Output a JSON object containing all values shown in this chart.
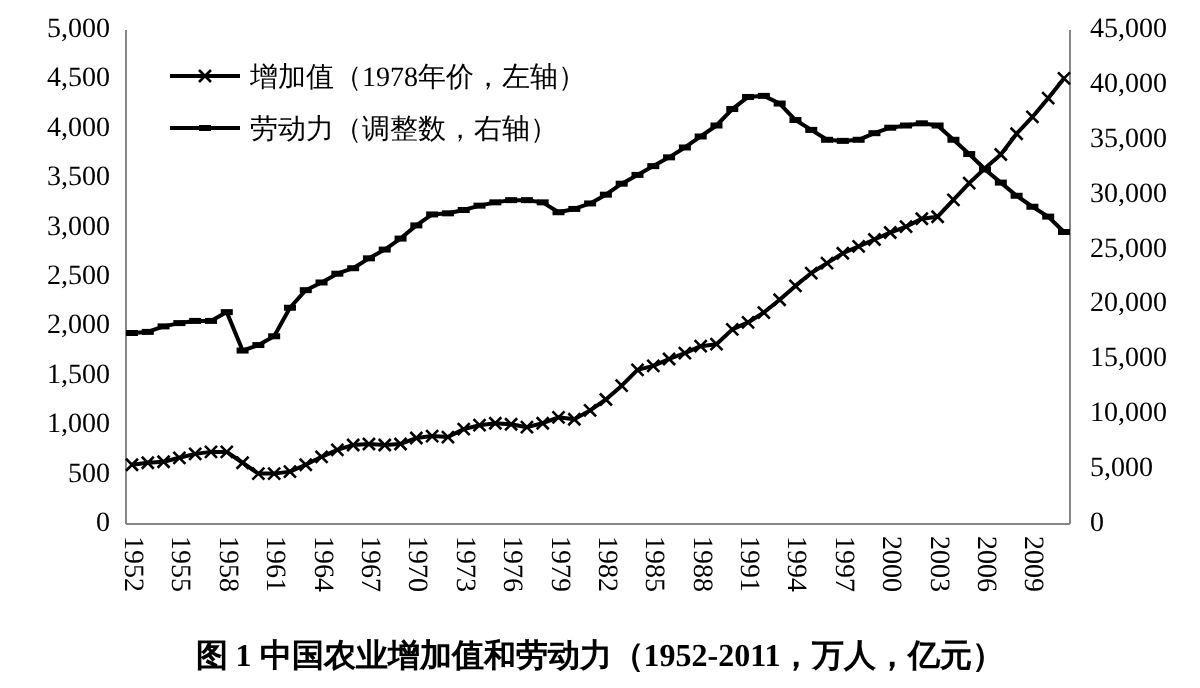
{
  "chart_data": {
    "type": "line",
    "title": "图 1  中国农业增加值和劳动力（1952-2011，万人，亿元）",
    "categories": [
      "1952",
      null,
      null,
      "1955",
      null,
      null,
      "1958",
      null,
      null,
      "1961",
      null,
      null,
      "1964",
      null,
      null,
      "1967",
      null,
      null,
      "1970",
      null,
      null,
      "1973",
      null,
      null,
      "1976",
      null,
      null,
      "1979",
      null,
      null,
      "1982",
      null,
      null,
      "1985",
      null,
      null,
      "1988",
      null,
      null,
      "1991",
      null,
      null,
      "1994",
      null,
      null,
      "1997",
      null,
      null,
      "2000",
      null,
      null,
      "2003",
      null,
      null,
      "2006",
      null,
      null,
      "2009",
      null,
      null
    ],
    "series": [
      {
        "name": "增加值（1978年价，左轴）",
        "color": "#000000",
        "marker": "cross",
        "values": [
          600,
          620,
          630,
          670,
          710,
          730,
          730,
          620,
          510,
          510,
          530,
          600,
          680,
          750,
          800,
          810,
          800,
          810,
          870,
          890,
          880,
          960,
          1000,
          1020,
          1010,
          980,
          1020,
          1080,
          1060,
          1150,
          1260,
          1400,
          1560,
          1600,
          1670,
          1730,
          1800,
          1820,
          1970,
          2040,
          2140,
          2270,
          2410,
          2540,
          2640,
          2740,
          2810,
          2880,
          2950,
          3010,
          3090,
          3110,
          3280,
          3450,
          3600,
          3740,
          3950,
          4120,
          4310,
          4510
        ]
      },
      {
        "name": "劳动力（调整数，右轴）",
        "color": "#000000",
        "marker": "square",
        "axis": "y2",
        "values": [
          17400,
          17500,
          18000,
          18300,
          18500,
          18500,
          19300,
          15800,
          16300,
          17100,
          19700,
          21300,
          22000,
          22800,
          23300,
          24200,
          25000,
          26000,
          27200,
          28200,
          28300,
          28600,
          29000,
          29300,
          29500,
          29500,
          29300,
          28400,
          28700,
          29200,
          30000,
          31000,
          31800,
          32600,
          33400,
          34300,
          35300,
          36300,
          37800,
          38900,
          39000,
          38300,
          36800,
          35900,
          35000,
          34900,
          35000,
          35600,
          36100,
          36300,
          36500,
          36300,
          35000,
          33700,
          32300,
          31100,
          29900,
          28900,
          28000,
          26600
        ]
      }
    ],
    "ylim": [
      0,
      5000
    ],
    "yticks": [
      {
        "value": 0,
        "label": "0"
      },
      {
        "value": 500,
        "label": "500"
      },
      {
        "value": 1000,
        "label": "1,000"
      },
      {
        "value": 1500,
        "label": "1,500"
      },
      {
        "value": 2000,
        "label": "2,000"
      },
      {
        "value": 2500,
        "label": "2,500"
      },
      {
        "value": 3000,
        "label": "3,000"
      },
      {
        "value": 3500,
        "label": "3,500"
      },
      {
        "value": 4000,
        "label": "4,000"
      },
      {
        "value": 4500,
        "label": "4,500"
      },
      {
        "value": 5000,
        "label": "5,000"
      }
    ],
    "y2lim": [
      0,
      45000
    ],
    "y2ticks": [
      {
        "value": 0,
        "label": "0"
      },
      {
        "value": 5000,
        "label": "5,000"
      },
      {
        "value": 10000,
        "label": "10,000"
      },
      {
        "value": 15000,
        "label": "15,000"
      },
      {
        "value": 20000,
        "label": "20,000"
      },
      {
        "value": 25000,
        "label": "25,000"
      },
      {
        "value": 30000,
        "label": "30,000"
      },
      {
        "value": 35000,
        "label": "35,000"
      },
      {
        "value": 40000,
        "label": "40,000"
      },
      {
        "value": 45000,
        "label": "45,000"
      }
    ],
    "legend": "top left",
    "grid": false
  }
}
